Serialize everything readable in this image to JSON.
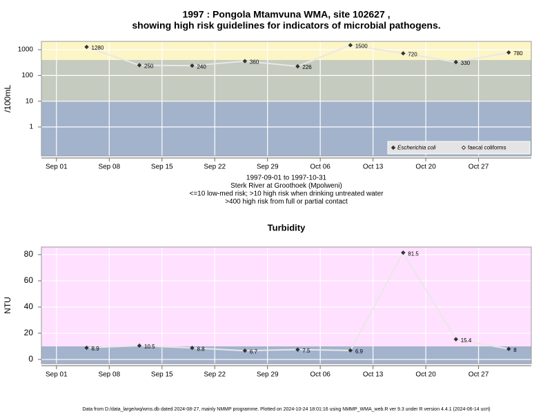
{
  "footer": "Data from D:/data_large/wq/wms.db dated 2024-08-27, mainly NMMP programme. Plotted on 2024-10-24 18:01:16 using NMMP_WMA_web.R ver 9.3 under R version 4.4.1 (2024-06-14 ucrt)",
  "chart_data": [
    {
      "type": "line",
      "title": [
        "1997 : Pongola Mtamvuna WMA, site 102627 ,",
        "showing high risk guidelines for indicators of microbial pathogens."
      ],
      "notes": [
        "1997-09-01 to 1997-10-31",
        "Sterk River at Groothoek (Mpolweni)",
        "<=10 low-med risk; >10 high risk when drinking untreated water",
        ">400 high risk from full or partial contact"
      ],
      "y_label": "/100mL",
      "log_scale": true,
      "x": [
        "1997-09-05",
        "1997-09-12",
        "1997-09-19",
        "1997-09-26",
        "1997-10-03",
        "1997-10-10",
        "1997-10-17",
        "1997-10-24",
        "1997-10-31"
      ],
      "series": [
        {
          "name": "Escherichia coli",
          "color": "#333333",
          "line_color": "#e8e8e8",
          "values": [
            1280,
            250,
            240,
            360,
            226,
            1500,
            720,
            330,
            780
          ]
        },
        {
          "name": "faecal coliforms",
          "color": "#333333",
          "line_color": "#e8e8e8",
          "values": [
            null,
            null,
            null,
            null,
            null,
            null,
            null,
            null,
            null
          ]
        }
      ],
      "xlim": [
        "1997-08-30",
        "1997-11-03"
      ],
      "xticks": [
        {
          "value": "1997-09-01",
          "label": "Sep 01"
        },
        {
          "value": "1997-09-08",
          "label": "Sep 08"
        },
        {
          "value": "1997-09-15",
          "label": "Sep 15"
        },
        {
          "value": "1997-09-22",
          "label": "Sep 22"
        },
        {
          "value": "1997-09-29",
          "label": "Sep 29"
        },
        {
          "value": "1997-10-06",
          "label": "Oct 06"
        },
        {
          "value": "1997-10-13",
          "label": "Oct 13"
        },
        {
          "value": "1997-10-20",
          "label": "Oct 20"
        },
        {
          "value": "1997-10-27",
          "label": "Oct 27"
        }
      ],
      "ylim": [
        0.075,
        2100
      ],
      "yticks": [
        1,
        10,
        100,
        1000
      ],
      "thresholds": [
        10,
        400
      ],
      "band_colors": [
        "#a3b3cc",
        "#c5cbbf",
        "#fcf5c6"
      ],
      "grid": true,
      "legend": "bottom-right"
    },
    {
      "type": "line",
      "title": "Turbidity",
      "y_label": "NTU",
      "log_scale": false,
      "x": [
        "1997-09-05",
        "1997-09-12",
        "1997-09-19",
        "1997-09-26",
        "1997-10-03",
        "1997-10-10",
        "1997-10-17",
        "1997-10-24",
        "1997-10-31"
      ],
      "series": [
        {
          "name": "Turbidity",
          "color": "#333333",
          "line_color": "#e8e8e8",
          "values": [
            8.9,
            10.5,
            8.8,
            6.7,
            7.5,
            6.9,
            81.5,
            15.4,
            8
          ]
        }
      ],
      "xlim": [
        "1997-08-30",
        "1997-11-03"
      ],
      "xticks": [
        {
          "value": "1997-09-01",
          "label": "Sep 01"
        },
        {
          "value": "1997-09-08",
          "label": "Sep 08"
        },
        {
          "value": "1997-09-15",
          "label": "Sep 15"
        },
        {
          "value": "1997-09-22",
          "label": "Sep 22"
        },
        {
          "value": "1997-09-29",
          "label": "Sep 29"
        },
        {
          "value": "1997-10-06",
          "label": "Oct 06"
        },
        {
          "value": "1997-10-13",
          "label": "Oct 13"
        },
        {
          "value": "1997-10-20",
          "label": "Oct 20"
        },
        {
          "value": "1997-10-27",
          "label": "Oct 27"
        }
      ],
      "ylim": [
        -3.2,
        85.8
      ],
      "yticks": [
        0,
        20,
        40,
        60,
        80
      ],
      "thresholds": [
        10
      ],
      "band_colors": [
        "#a3b3cc",
        "#ffe0ff"
      ],
      "grid": true
    }
  ]
}
